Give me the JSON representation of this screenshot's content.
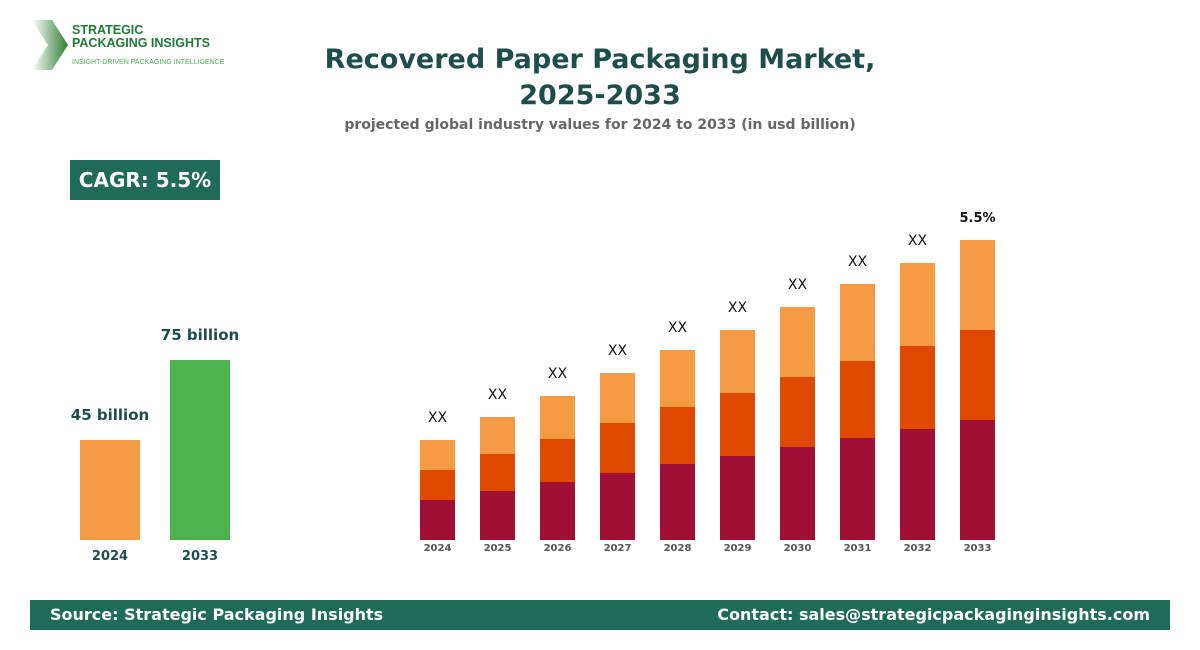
{
  "logo": {
    "line1": "STRATEGIC",
    "line2": "PACKAGING INSIGHTS",
    "tagline": "INSIGHT-DRIVEN PACKAGING INTELLIGENCE"
  },
  "header": {
    "title_line1": "Recovered Paper Packaging Market,",
    "title_line2": "2025-2033",
    "subtitle": "projected global industry values for 2024 to 2033 (in usd billion)"
  },
  "cagr_badge": "CAGR: 5.5%",
  "footer": {
    "source": "Source: Strategic Packaging Insights",
    "contact": "Contact: sales@strategicpackaginginsights.com"
  },
  "chart_data": [
    {
      "type": "bar",
      "categories": [
        "2024",
        "2033"
      ],
      "values": [
        45,
        75
      ],
      "data_labels": [
        "45 billion",
        "75 billion"
      ],
      "colors": [
        "#f59b45",
        "#4cb34f"
      ]
    },
    {
      "type": "bar",
      "stacked": true,
      "categories": [
        "2024",
        "2025",
        "2026",
        "2027",
        "2028",
        "2029",
        "2030",
        "2031",
        "2032",
        "2033"
      ],
      "series": [
        {
          "color": "#a01035",
          "values": [
            40,
            49,
            58,
            67,
            76,
            84,
            93,
            102,
            111,
            120
          ]
        },
        {
          "color": "#e04a00",
          "values": [
            30,
            37,
            43,
            50,
            57,
            63,
            70,
            77,
            83,
            90
          ]
        },
        {
          "color": "#f59b45",
          "values": [
            30,
            37,
            43,
            50,
            57,
            63,
            70,
            77,
            83,
            90
          ]
        }
      ],
      "data_labels": [
        "XX",
        "XX",
        "XX",
        "XX",
        "XX",
        "XX",
        "XX",
        "XX",
        "XX",
        "5.5%"
      ]
    }
  ]
}
